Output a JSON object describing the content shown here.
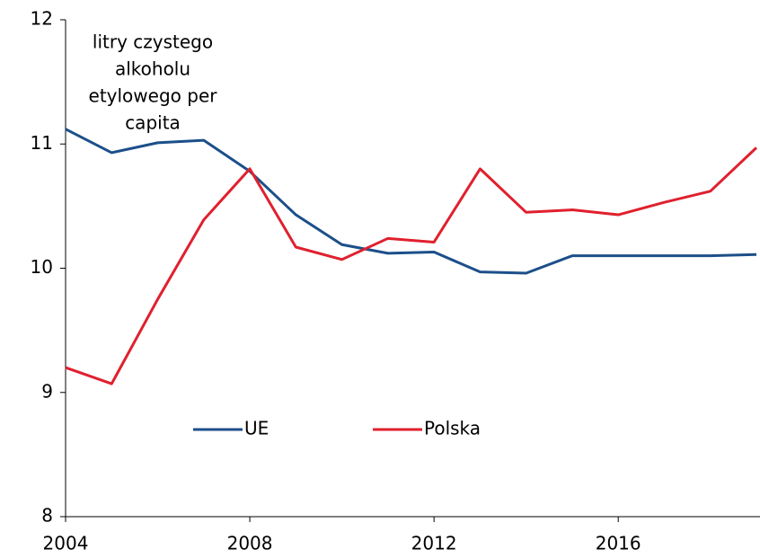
{
  "chart_data": {
    "type": "line",
    "annotation": [
      "litry czystego",
      "alkoholu",
      "etylowego per",
      "capita"
    ],
    "x": [
      2004,
      2005,
      2006,
      2007,
      2008,
      2009,
      2010,
      2011,
      2012,
      2013,
      2014,
      2015,
      2016,
      2017,
      2018,
      2019
    ],
    "series": [
      {
        "name": "UE",
        "color": "#1c4f8a",
        "values": [
          11.12,
          10.93,
          11.01,
          11.03,
          10.78,
          10.43,
          10.19,
          10.12,
          10.13,
          9.97,
          9.96,
          10.1,
          10.1,
          10.1,
          10.1,
          10.11
        ]
      },
      {
        "name": "Polska",
        "color": "#e0202e",
        "values": [
          9.2,
          9.07,
          9.75,
          10.39,
          10.8,
          10.17,
          10.07,
          10.24,
          10.21,
          10.8,
          10.45,
          10.47,
          10.43,
          10.53,
          10.62,
          10.97
        ]
      }
    ],
    "xlim": [
      2004,
      2019
    ],
    "xticks": [
      2004,
      2008,
      2012,
      2016
    ],
    "ylim": [
      8,
      12
    ],
    "yticks": [
      8,
      9,
      10,
      11,
      12
    ],
    "grid": false
  }
}
